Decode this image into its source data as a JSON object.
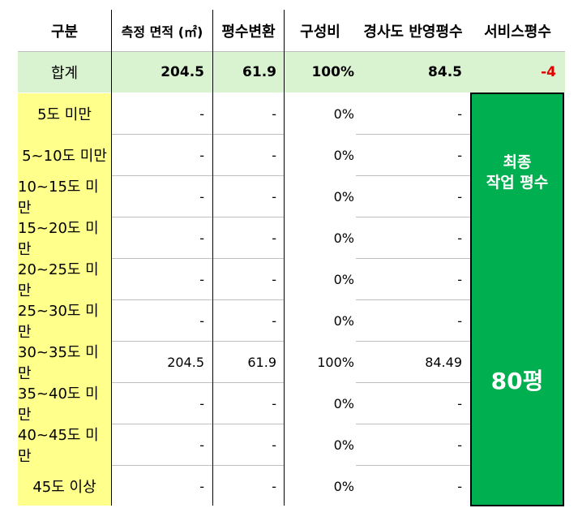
{
  "header": [
    "구분",
    "측정 면적 (㎡)",
    "평수변환",
    "구성비",
    "경사도 반영평수",
    "서비스평수"
  ],
  "total": {
    "label": "합계",
    "area": "204.5",
    "pyeong": "61.9",
    "ratio": "100%",
    "slope_pyeong": "84.5",
    "service": "-4",
    "service_color": "#e00000"
  },
  "rows": [
    {
      "label": "5도 미만",
      "area": "-",
      "pyeong": "-",
      "ratio": "0%",
      "slope": "-"
    },
    {
      "label": "5~10도 미만",
      "area": "-",
      "pyeong": "-",
      "ratio": "0%",
      "slope": "-"
    },
    {
      "label": "10~15도 미만",
      "area": "-",
      "pyeong": "-",
      "ratio": "0%",
      "slope": "-"
    },
    {
      "label": "15~20도 미만",
      "area": "-",
      "pyeong": "-",
      "ratio": "0%",
      "slope": "-"
    },
    {
      "label": "20~25도 미만",
      "area": "-",
      "pyeong": "-",
      "ratio": "0%",
      "slope": "-"
    },
    {
      "label": "25~30도 미만",
      "area": "-",
      "pyeong": "-",
      "ratio": "0%",
      "slope": "-"
    },
    {
      "label": "30~35도 미만",
      "area": "204.5",
      "pyeong": "61.9",
      "ratio": "100%",
      "slope": "84.49"
    },
    {
      "label": "35~40도 미만",
      "area": "-",
      "pyeong": "-",
      "ratio": "0%",
      "slope": "-"
    },
    {
      "label": "40~45도 미만",
      "area": "-",
      "pyeong": "-",
      "ratio": "0%",
      "slope": "-"
    },
    {
      "label": "45도 이상",
      "area": "-",
      "pyeong": "-",
      "ratio": "0%",
      "slope": "-"
    }
  ],
  "final": {
    "title_line1": "최종",
    "title_line2": "작업 평수",
    "value": "80평"
  },
  "colors": {
    "total_bg": "#d9f2d0",
    "label_bg": "#ffff8b",
    "final_bg": "#00b050"
  }
}
